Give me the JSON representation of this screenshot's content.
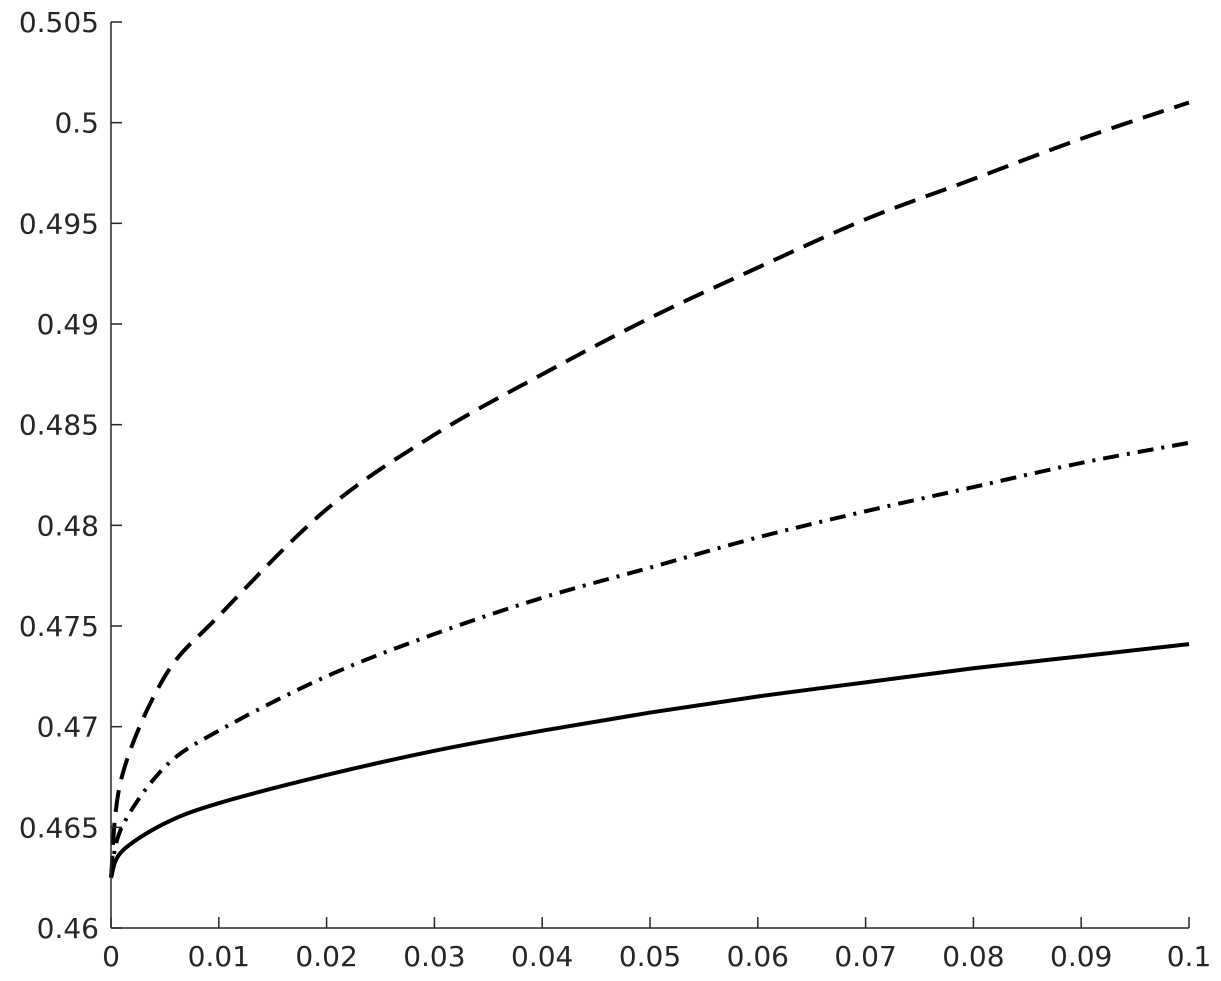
{
  "chart_data": {
    "type": "line",
    "title": "",
    "xlabel": "",
    "ylabel": "",
    "xlim": [
      0,
      0.1
    ],
    "ylim": [
      0.46,
      0.505
    ],
    "grid": false,
    "legend": "none",
    "xticks": [
      "0",
      "0.01",
      "0.02",
      "0.03",
      "0.04",
      "0.05",
      "0.06",
      "0.07",
      "0.08",
      "0.09",
      "0.1"
    ],
    "yticks": [
      "0.46",
      "0.465",
      "0.47",
      "0.475",
      "0.48",
      "0.485",
      "0.49",
      "0.495",
      "0.5",
      "0.505"
    ],
    "x": [
      0,
      0.001,
      0.005,
      0.01,
      0.02,
      0.03,
      0.04,
      0.05,
      0.06,
      0.07,
      0.08,
      0.09,
      0.1
    ],
    "series": [
      {
        "style": "dashed",
        "color": "#000000",
        "values": [
          0.4625,
          0.4675,
          0.4725,
          0.4755,
          0.4808,
          0.4845,
          0.4875,
          0.4903,
          0.4928,
          0.4952,
          0.4972,
          0.4992,
          0.501
        ]
      },
      {
        "style": "dash-dot",
        "color": "#000000",
        "values": [
          0.4625,
          0.465,
          0.468,
          0.4698,
          0.4725,
          0.4746,
          0.4764,
          0.4779,
          0.4794,
          0.4807,
          0.4819,
          0.4831,
          0.4841
        ]
      },
      {
        "style": "solid",
        "color": "#000000",
        "values": [
          0.4625,
          0.4638,
          0.4652,
          0.4662,
          0.4676,
          0.4688,
          0.4698,
          0.4707,
          0.4715,
          0.4722,
          0.4729,
          0.4735,
          0.4741
        ]
      }
    ]
  }
}
